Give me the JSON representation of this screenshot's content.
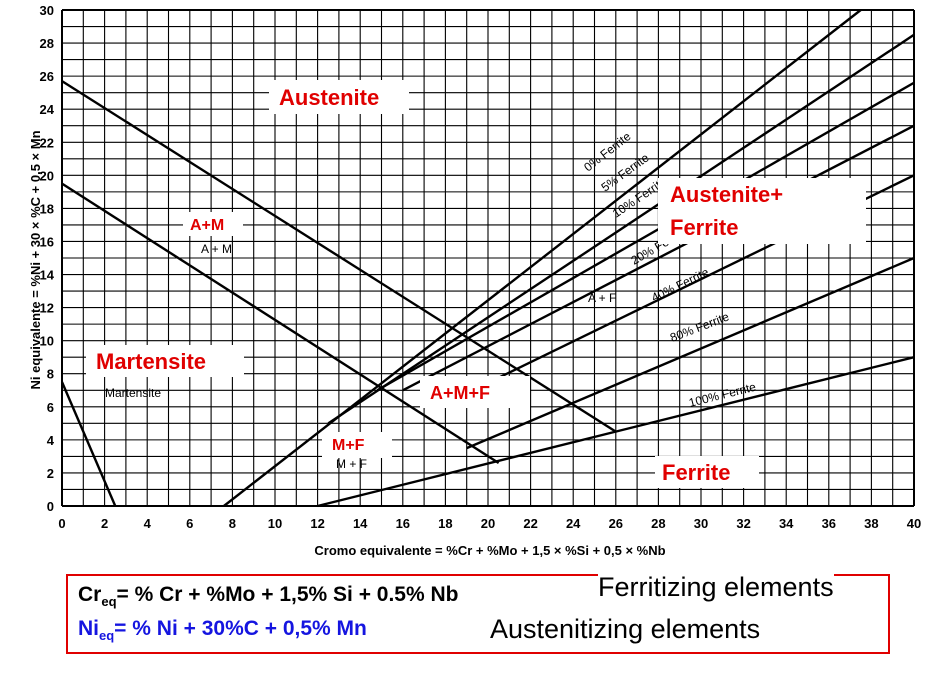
{
  "chart_data": {
    "type": "line",
    "title": "",
    "xlabel": "Cromo equivalente = %Cr + %Mo + 1,5 × %Si + 0,5 × %Nb",
    "ylabel": "Ni equivalente = %Ni + 30 × %C + 0,5 × Mn",
    "xlim": [
      0,
      40
    ],
    "ylim": [
      0,
      30
    ],
    "grid": true,
    "x_ticks": [
      "0",
      "2",
      "4",
      "6",
      "8",
      "10",
      "12",
      "14",
      "16",
      "18",
      "20",
      "22",
      "24",
      "26",
      "28",
      "30",
      "32",
      "34",
      "36",
      "38",
      "40"
    ],
    "y_ticks": [
      "0",
      "2",
      "4",
      "6",
      "8",
      "10",
      "12",
      "14",
      "16",
      "18",
      "20",
      "22",
      "24",
      "26",
      "28",
      "30"
    ],
    "series": [
      {
        "name": "0% Ferrite",
        "x": [
          7.6,
          37.5
        ],
        "y": [
          0,
          30
        ]
      },
      {
        "name": "5% Ferrite",
        "x": [
          12.5,
          40
        ],
        "y": [
          5,
          28.5
        ]
      },
      {
        "name": "10% Ferrite",
        "x": [
          14.8,
          40
        ],
        "y": [
          7,
          25.6
        ]
      },
      {
        "name": "20% Ferrite",
        "x": [
          16,
          40
        ],
        "y": [
          7,
          23
        ]
      },
      {
        "name": "40% Ferrite",
        "x": [
          18.5,
          40
        ],
        "y": [
          6.5,
          20
        ]
      },
      {
        "name": "80% Ferrite",
        "x": [
          19,
          40
        ],
        "y": [
          3.5,
          15
        ]
      },
      {
        "name": "100% Ferrite",
        "x": [
          12,
          40
        ],
        "y": [
          0,
          9
        ]
      },
      {
        "name": "",
        "x": [
          0,
          26
        ],
        "y": [
          25.7,
          4.5
        ]
      },
      {
        "name": "",
        "x": [
          0,
          20.5
        ],
        "y": [
          19.5,
          2.6
        ]
      },
      {
        "name": "",
        "x": [
          0,
          2.5
        ],
        "y": [
          7.5,
          0
        ]
      }
    ],
    "annotations": [
      "A + M",
      "A + F",
      "Martensite",
      "M + F"
    ]
  },
  "regions": {
    "austenite": "Austenite",
    "austenite_ferrite_1": "Austenite+",
    "austenite_ferrite_2": "Ferrite",
    "a_m": "A+M",
    "martensite": "Martensite",
    "a_m_f": "A+M+F",
    "m_f": "M+F",
    "ferrite": "Ferrite"
  },
  "formulas": {
    "cr_main": "Cr",
    "cr_sub": "eq",
    "cr_rest": "= % Cr + %Mo + 1,5% Si + 0.5% Nb",
    "cr_note": "Ferritizing elements",
    "ni_main": "Ni",
    "ni_sub": "eq",
    "ni_rest": "= % Ni +  30%C + 0,5% Mn",
    "ni_note": "Austenitizing elements"
  },
  "colors": {
    "highlight": "#e00000",
    "ni_formula": "#1515e0",
    "grid": "#000000"
  }
}
